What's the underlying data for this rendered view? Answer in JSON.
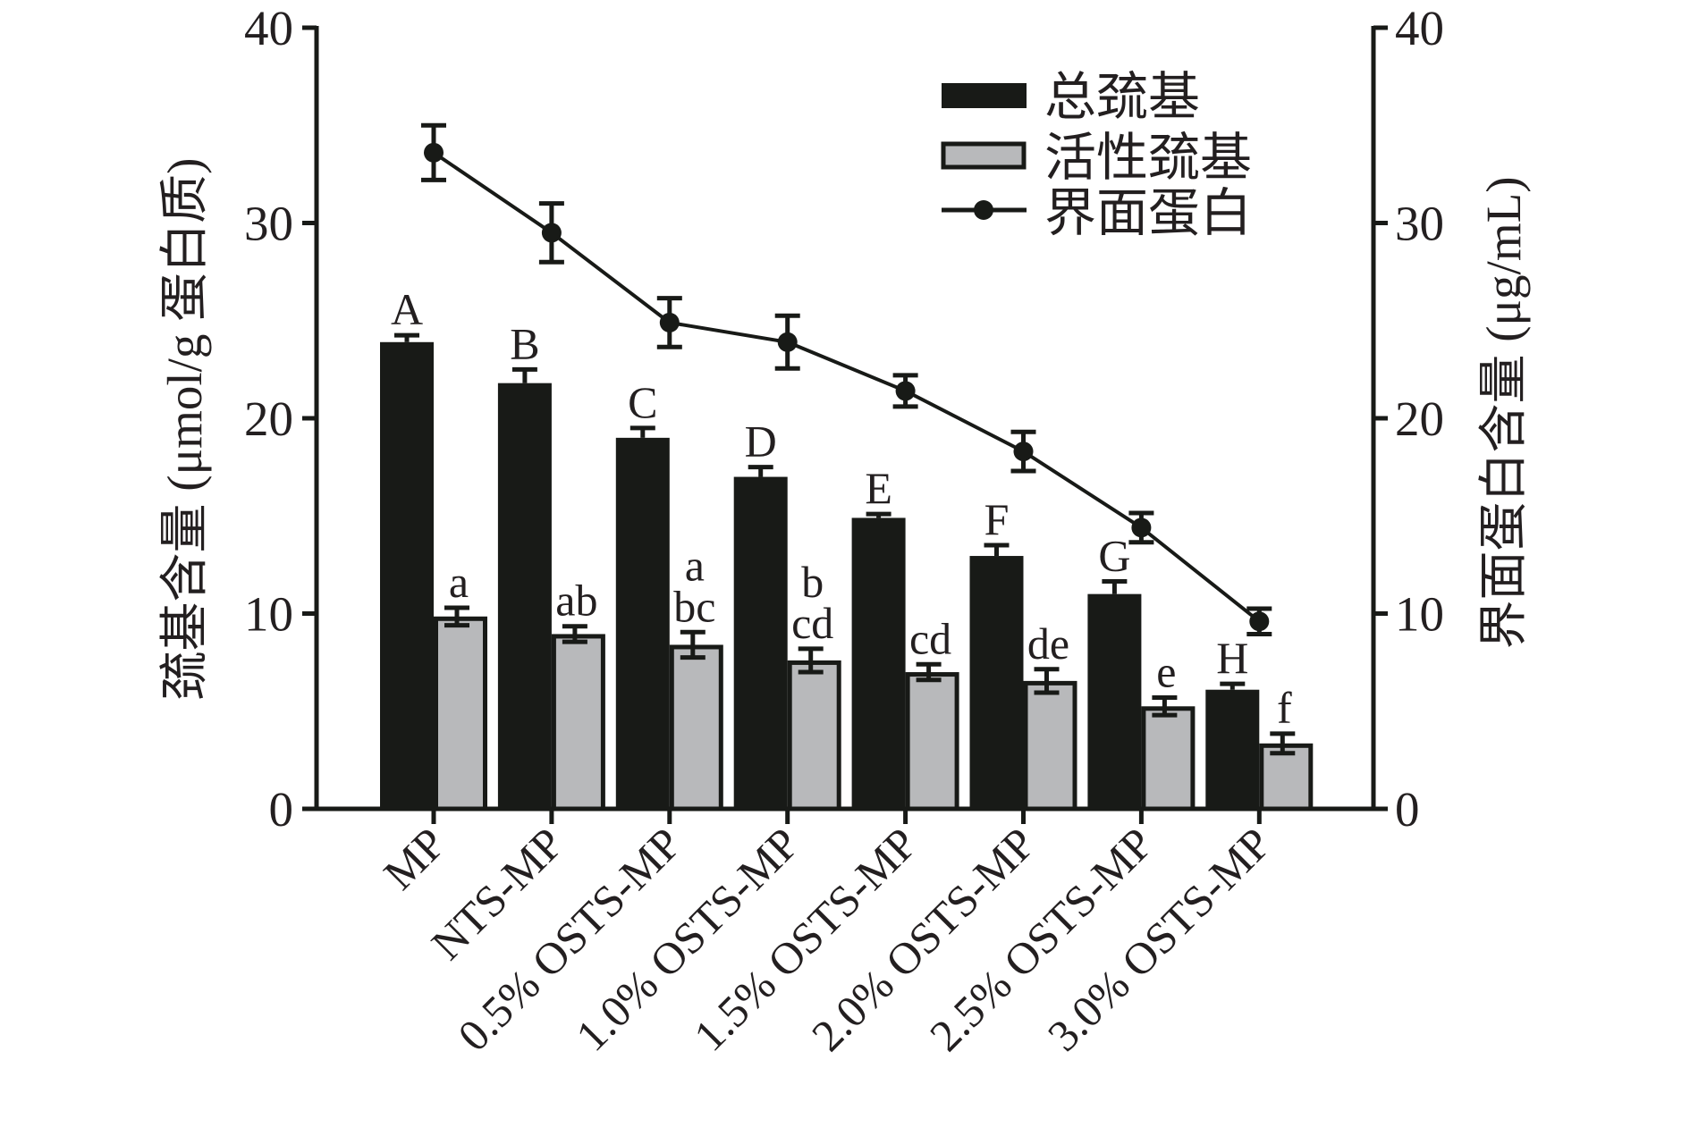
{
  "chart_data": {
    "type": "bar",
    "title": "",
    "categories": [
      "MP",
      "NTS-MP",
      "0.5% OSTS-MP",
      "1.0% OSTS-MP",
      "1.5% OSTS-MP",
      "2.0% OSTS-MP",
      "2.5% OSTS-MP",
      "3.0% OSTS-MP"
    ],
    "ylabel_left": "巯基含量 (μmol/g 蛋白质)",
    "ylabel_right": "界面蛋白含量 (μg/mL)",
    "ylim_left": [
      0,
      40
    ],
    "ylim_right": [
      0,
      40
    ],
    "yticks_left": [
      "0",
      "10",
      "20",
      "30",
      "40"
    ],
    "yticks_right": [
      "0",
      "10",
      "20",
      "30",
      "40"
    ],
    "grid": false,
    "legend_position": "top-right",
    "series": [
      {
        "name": "总巯基",
        "type": "bar",
        "axis": "left",
        "color": "#181a17",
        "values": [
          23.9,
          21.8,
          19.0,
          17.0,
          14.9,
          12.95,
          11.0,
          6.1
        ],
        "errors": [
          0.35,
          0.7,
          0.5,
          0.5,
          0.2,
          0.55,
          0.65,
          0.3
        ],
        "labels": [
          [
            "A"
          ],
          [
            "B"
          ],
          [
            "C"
          ],
          [
            "D"
          ],
          [
            "E"
          ],
          [
            "F"
          ],
          [
            "G"
          ],
          [
            "H"
          ]
        ]
      },
      {
        "name": "活性巯基",
        "type": "bar",
        "axis": "left",
        "color": "#b8b9bb",
        "values": [
          9.85,
          8.95,
          8.4,
          7.6,
          7.0,
          6.55,
          5.25,
          3.35
        ],
        "errors": [
          0.45,
          0.4,
          0.65,
          0.6,
          0.4,
          0.6,
          0.45,
          0.5
        ],
        "labels": [
          [
            "a"
          ],
          [
            "ab"
          ],
          [
            "a",
            "bc"
          ],
          [
            "b",
            "cd"
          ],
          [
            "cd"
          ],
          [
            "de"
          ],
          [
            "e"
          ],
          [
            "f"
          ]
        ]
      },
      {
        "name": "界面蛋白",
        "type": "line",
        "axis": "right",
        "color": "#181a17",
        "values": [
          33.6,
          29.5,
          24.9,
          23.9,
          21.4,
          18.3,
          14.4,
          9.6
        ],
        "errors": [
          1.4,
          1.5,
          1.25,
          1.35,
          0.8,
          1.0,
          0.75,
          0.65
        ]
      }
    ]
  }
}
